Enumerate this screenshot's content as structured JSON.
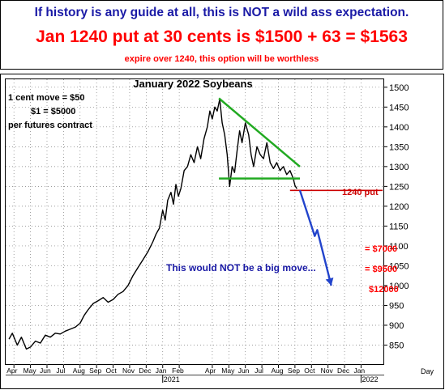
{
  "header": {
    "line1": "If history is any guide at all, this is NOT a wild ass expectation.",
    "line2": "Jan 1240 put at 30 cents is $1500 + 63 = $1563",
    "line3": "expire over 1240, this option will be worthless"
  },
  "annotations": {
    "contract_line1": "1 cent move = $50",
    "contract_line2": "$1 = $5000",
    "contract_line3": "per futures contract",
    "put_label": "1240 put",
    "target1": "= $7000",
    "target2": "= $9500",
    "target3": "$12000",
    "move_note": "This would NOT be a big move..."
  },
  "colors": {
    "navy": "#1a1aa6",
    "red": "#ff0000",
    "dark_red": "#cc0000",
    "green": "#22aa22",
    "blue": "#2244cc",
    "price": "#000000"
  },
  "chart_data": {
    "type": "line",
    "title": "January 2022 Soybeans",
    "xlabel": "Day",
    "ylabel": "",
    "ylim": [
      800,
      1520
    ],
    "y_ticks": [
      850,
      900,
      950,
      1000,
      1050,
      1100,
      1150,
      1200,
      1250,
      1300,
      1350,
      1400,
      1450,
      1500
    ],
    "x_ticks": [
      "Apr",
      "May",
      "Jun",
      "Jul",
      "Aug",
      "Sep",
      "Oct",
      "Nov",
      "Dec",
      "Jan",
      "Feb",
      "Apr",
      "May",
      "Jun",
      "Jul",
      "Aug",
      "Sep",
      "Oct",
      "Nov",
      "Dec",
      "Jan"
    ],
    "x_tick_pos": [
      0,
      1,
      2,
      3,
      4,
      5,
      6,
      7,
      8,
      9,
      10,
      12,
      13,
      14,
      15,
      16,
      17,
      18,
      19,
      20,
      21
    ],
    "year_labels": [
      {
        "label": "2021",
        "pos": 9
      },
      {
        "label": "2022",
        "pos": 21
      }
    ],
    "x_range": [
      -0.5,
      22.4
    ],
    "grid": true,
    "series": [
      {
        "kind": "price",
        "points": [
          [
            -0.3,
            865
          ],
          [
            -0.1,
            880
          ],
          [
            0.2,
            850
          ],
          [
            0.45,
            870
          ],
          [
            0.75,
            840
          ],
          [
            1.0,
            845
          ],
          [
            1.3,
            860
          ],
          [
            1.6,
            855
          ],
          [
            1.9,
            875
          ],
          [
            2.2,
            870
          ],
          [
            2.5,
            880
          ],
          [
            2.8,
            878
          ],
          [
            3.1,
            885
          ],
          [
            3.4,
            890
          ],
          [
            3.7,
            895
          ],
          [
            4.0,
            905
          ],
          [
            4.25,
            925
          ],
          [
            4.5,
            940
          ],
          [
            4.8,
            955
          ],
          [
            5.1,
            962
          ],
          [
            5.4,
            970
          ],
          [
            5.7,
            958
          ],
          [
            6.0,
            965
          ],
          [
            6.3,
            978
          ],
          [
            6.6,
            985
          ],
          [
            6.9,
            1000
          ],
          [
            7.2,
            1025
          ],
          [
            7.5,
            1045
          ],
          [
            7.8,
            1065
          ],
          [
            8.1,
            1085
          ],
          [
            8.4,
            1110
          ],
          [
            8.6,
            1130
          ],
          [
            8.8,
            1145
          ],
          [
            9.0,
            1190
          ],
          [
            9.15,
            1165
          ],
          [
            9.3,
            1215
          ],
          [
            9.5,
            1235
          ],
          [
            9.65,
            1205
          ],
          [
            9.8,
            1255
          ],
          [
            9.95,
            1225
          ],
          [
            10.1,
            1245
          ],
          [
            10.3,
            1290
          ],
          [
            10.5,
            1300
          ],
          [
            10.7,
            1330
          ],
          [
            10.9,
            1310
          ],
          [
            11.1,
            1350
          ],
          [
            11.3,
            1320
          ],
          [
            11.5,
            1370
          ],
          [
            11.7,
            1400
          ],
          [
            11.85,
            1440
          ],
          [
            12.0,
            1420
          ],
          [
            12.15,
            1450
          ],
          [
            12.3,
            1440
          ],
          [
            12.45,
            1470
          ],
          [
            12.6,
            1410
          ],
          [
            12.75,
            1380
          ],
          [
            12.9,
            1330
          ],
          [
            13.05,
            1250
          ],
          [
            13.2,
            1300
          ],
          [
            13.35,
            1285
          ],
          [
            13.5,
            1340
          ],
          [
            13.65,
            1390
          ],
          [
            13.8,
            1360
          ],
          [
            14.0,
            1410
          ],
          [
            14.2,
            1380
          ],
          [
            14.35,
            1330
          ],
          [
            14.5,
            1300
          ],
          [
            14.7,
            1350
          ],
          [
            14.9,
            1330
          ],
          [
            15.1,
            1320
          ],
          [
            15.3,
            1360
          ],
          [
            15.5,
            1310
          ],
          [
            15.7,
            1295
          ],
          [
            15.9,
            1310
          ],
          [
            16.1,
            1290
          ],
          [
            16.3,
            1300
          ],
          [
            16.5,
            1280
          ],
          [
            16.7,
            1290
          ],
          [
            16.9,
            1270
          ],
          [
            17.0,
            1252
          ],
          [
            17.12,
            1244
          ]
        ]
      },
      {
        "kind": "resistance",
        "points": [
          [
            12.4,
            1472
          ],
          [
            17.3,
            1300
          ]
        ]
      },
      {
        "kind": "support",
        "points": [
          [
            12.4,
            1270
          ],
          [
            17.3,
            1270
          ]
        ]
      },
      {
        "kind": "put_strike",
        "points": [
          [
            16.7,
            1240
          ],
          [
            22.3,
            1240
          ]
        ]
      },
      {
        "kind": "projection",
        "points": [
          [
            17.3,
            1240
          ],
          [
            18.2,
            1125
          ],
          [
            18.35,
            1140
          ],
          [
            19.2,
            1000
          ]
        ]
      }
    ],
    "target_levels": [
      1140,
      1090,
      1000
    ]
  }
}
